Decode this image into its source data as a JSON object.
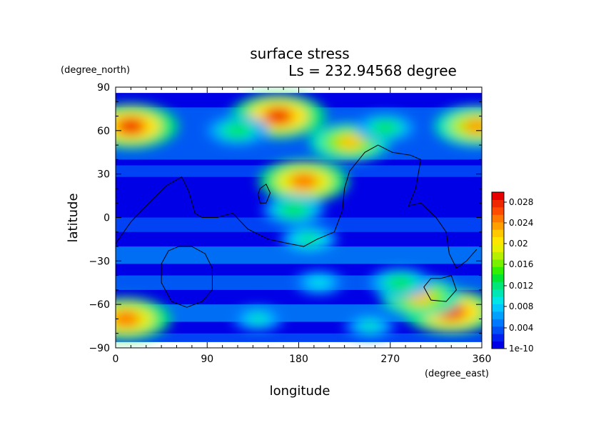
{
  "chart_data": {
    "type": "heatmap",
    "title": "surface stress",
    "subtitle": "Ls = 232.94568 degree",
    "xlabel": "longitude",
    "ylabel": "latitude",
    "xunits": "(degree_east)",
    "yunits": "(degree_north)",
    "xlim": [
      0,
      360
    ],
    "ylim": [
      -90,
      90
    ],
    "xticks": [
      0,
      90,
      180,
      270,
      360
    ],
    "yticks": [
      90,
      60,
      30,
      0,
      -30,
      -60,
      -90
    ],
    "grid": false,
    "colorbar": {
      "labels": [
        "0.028",
        "0.024",
        "0.02",
        "0.016",
        "0.012",
        "0.008",
        "0.004",
        "1e-10"
      ],
      "min": 0,
      "max": 0.03,
      "colors": [
        "#0000e6",
        "#0022f0",
        "#0050f5",
        "#0078ff",
        "#00a0ff",
        "#00c8ff",
        "#00e6e6",
        "#00e6b4",
        "#00e678",
        "#00e632",
        "#32f000",
        "#78f000",
        "#b4f000",
        "#e6f000",
        "#ffe600",
        "#ffc800",
        "#ffa000",
        "#ff7800",
        "#ff4b00",
        "#f02800",
        "#e60000"
      ]
    },
    "hotspots": [
      {
        "lon": 15,
        "lat": 63,
        "value": 0.028
      },
      {
        "lon": 355,
        "lat": 63,
        "value": 0.024
      },
      {
        "lon": 160,
        "lat": 70,
        "value": 0.028
      },
      {
        "lon": 120,
        "lat": 60,
        "value": 0.014
      },
      {
        "lon": 230,
        "lat": 52,
        "value": 0.022
      },
      {
        "lon": 265,
        "lat": 62,
        "value": 0.013
      },
      {
        "lon": 185,
        "lat": 25,
        "value": 0.026
      },
      {
        "lon": 175,
        "lat": 5,
        "value": 0.014
      },
      {
        "lon": 190,
        "lat": -15,
        "value": 0.012
      },
      {
        "lon": 10,
        "lat": -70,
        "value": 0.026
      },
      {
        "lon": 330,
        "lat": -65,
        "value": 0.028
      },
      {
        "lon": 300,
        "lat": -55,
        "value": 0.022
      },
      {
        "lon": 280,
        "lat": -45,
        "value": 0.014
      },
      {
        "lon": 140,
        "lat": -70,
        "value": 0.01
      },
      {
        "lon": 250,
        "lat": -75,
        "value": 0.01
      },
      {
        "lon": 200,
        "lat": -45,
        "value": 0.009
      }
    ],
    "contours": [
      [
        [
          0,
          -18
        ],
        [
          15,
          -3
        ],
        [
          30,
          8
        ],
        [
          50,
          22
        ],
        [
          65,
          28
        ],
        [
          72,
          18
        ],
        [
          78,
          3
        ],
        [
          85,
          0
        ],
        [
          100,
          0
        ],
        [
          115,
          3
        ],
        [
          130,
          -8
        ],
        [
          150,
          -15
        ],
        [
          170,
          -18
        ],
        [
          185,
          -20
        ],
        [
          198,
          -15
        ],
        [
          215,
          -10
        ],
        [
          223,
          5
        ],
        [
          225,
          20
        ],
        [
          230,
          32
        ],
        [
          245,
          45
        ],
        [
          258,
          50
        ],
        [
          272,
          45
        ],
        [
          290,
          43
        ],
        [
          300,
          40
        ],
        [
          295,
          20
        ],
        [
          288,
          8
        ],
        [
          300,
          10
        ],
        [
          315,
          0
        ],
        [
          325,
          -10
        ],
        [
          328,
          -25
        ],
        [
          335,
          -35
        ],
        [
          345,
          -30
        ],
        [
          355,
          -22
        ]
      ],
      [
        [
          62,
          -20
        ],
        [
          75,
          -20
        ],
        [
          88,
          -25
        ],
        [
          95,
          -35
        ],
        [
          95,
          -50
        ],
        [
          85,
          -58
        ],
        [
          70,
          -62
        ],
        [
          55,
          -58
        ],
        [
          45,
          -45
        ],
        [
          45,
          -32
        ],
        [
          52,
          -23
        ],
        [
          62,
          -20
        ]
      ],
      [
        [
          320,
          -42
        ],
        [
          330,
          -40
        ],
        [
          335,
          -50
        ],
        [
          325,
          -58
        ],
        [
          310,
          -57
        ],
        [
          303,
          -48
        ],
        [
          310,
          -42
        ],
        [
          320,
          -42
        ]
      ],
      [
        [
          142,
          20
        ],
        [
          148,
          23
        ],
        [
          152,
          17
        ],
        [
          148,
          10
        ],
        [
          142,
          10
        ],
        [
          140,
          16
        ],
        [
          142,
          20
        ]
      ]
    ]
  }
}
